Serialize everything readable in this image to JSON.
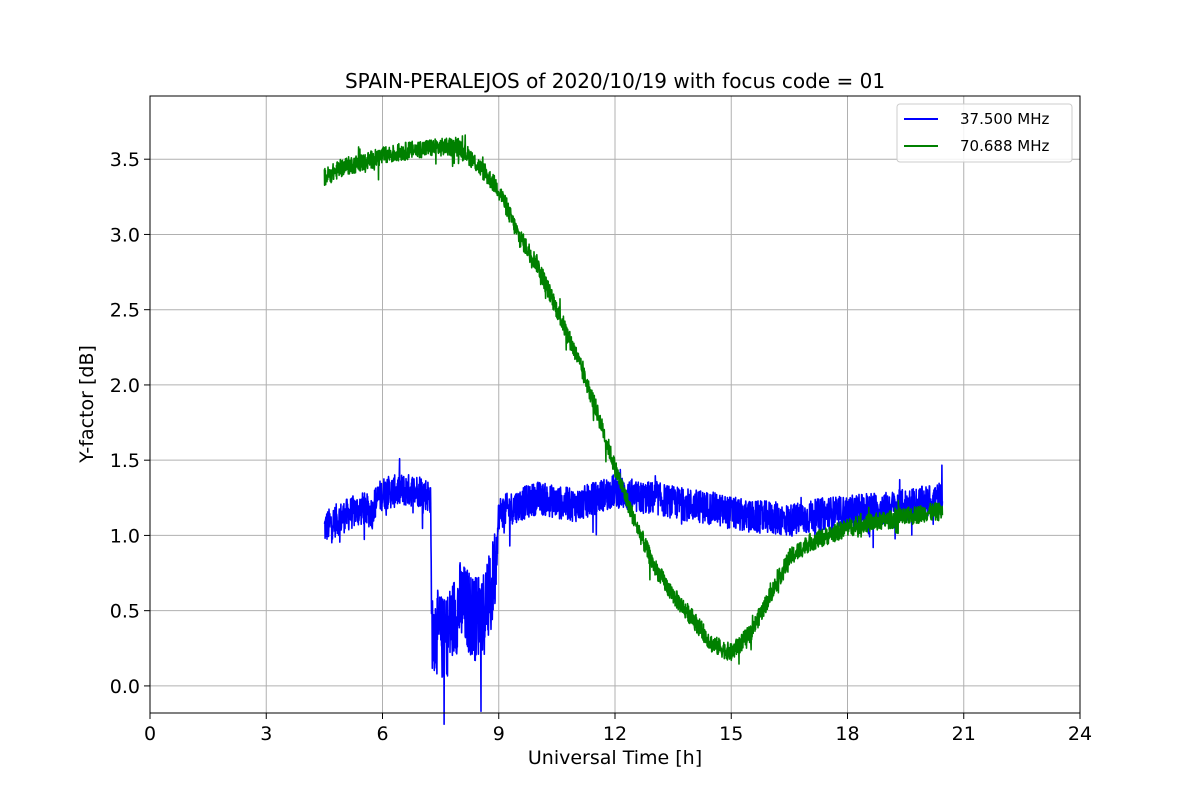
{
  "chart_data": {
    "type": "line",
    "title": "SPAIN-PERALEJOS of 2020/10/19 with focus code = 01",
    "xlabel": "Universal Time [h]",
    "ylabel": "Y-factor [dB]",
    "xlim": [
      0,
      24
    ],
    "ylim": [
      -0.18,
      3.92
    ],
    "xticks": [
      0,
      3,
      6,
      9,
      12,
      15,
      18,
      21,
      24
    ],
    "yticks": [
      0.0,
      0.5,
      1.0,
      1.5,
      2.0,
      2.5,
      3.0,
      3.5
    ],
    "ytick_labels": [
      "0.0",
      "0.5",
      "1.0",
      "1.5",
      "2.0",
      "2.5",
      "3.0",
      "3.5"
    ],
    "grid": true,
    "legend_position": "top-right",
    "series": [
      {
        "name": "37.500 MHz",
        "color": "#0000ff",
        "x": [
          4.5,
          4.8,
          5.2,
          5.5,
          5.75,
          5.76,
          6.0,
          6.5,
          7.0,
          7.25,
          7.26,
          7.6,
          8.0,
          8.4,
          8.8,
          8.95,
          9.0,
          9.5,
          10.0,
          10.5,
          11.0,
          11.5,
          12.0,
          12.5,
          13.0,
          13.5,
          14.0,
          14.5,
          15.0,
          15.5,
          16.0,
          16.5,
          17.0,
          17.5,
          18.0,
          18.5,
          19.0,
          19.5,
          20.0,
          20.45
        ],
        "y": [
          1.05,
          1.1,
          1.15,
          1.18,
          1.15,
          1.2,
          1.28,
          1.3,
          1.3,
          1.25,
          0.4,
          0.3,
          0.55,
          0.45,
          0.6,
          0.9,
          1.15,
          1.2,
          1.25,
          1.22,
          1.2,
          1.25,
          1.3,
          1.25,
          1.25,
          1.22,
          1.2,
          1.18,
          1.15,
          1.12,
          1.12,
          1.1,
          1.12,
          1.15,
          1.15,
          1.18,
          1.18,
          1.2,
          1.22,
          1.25
        ],
        "noise": 0.11
      },
      {
        "name": "70.688 MHz",
        "color": "#008000",
        "x": [
          4.5,
          5.0,
          5.5,
          6.0,
          6.5,
          7.0,
          7.5,
          8.0,
          8.5,
          9.0,
          9.5,
          10.0,
          10.5,
          11.0,
          11.5,
          12.0,
          12.5,
          13.0,
          13.5,
          14.0,
          14.5,
          15.0,
          15.5,
          16.0,
          16.5,
          17.0,
          17.5,
          18.0,
          18.5,
          19.0,
          19.5,
          20.0,
          20.45
        ],
        "y": [
          3.38,
          3.45,
          3.48,
          3.52,
          3.55,
          3.57,
          3.58,
          3.58,
          3.45,
          3.3,
          3.0,
          2.8,
          2.5,
          2.2,
          1.85,
          1.45,
          1.1,
          0.8,
          0.6,
          0.45,
          0.28,
          0.22,
          0.35,
          0.6,
          0.85,
          0.95,
          1.0,
          1.05,
          1.08,
          1.1,
          1.12,
          1.15,
          1.16
        ],
        "noise": 0.06
      }
    ]
  }
}
